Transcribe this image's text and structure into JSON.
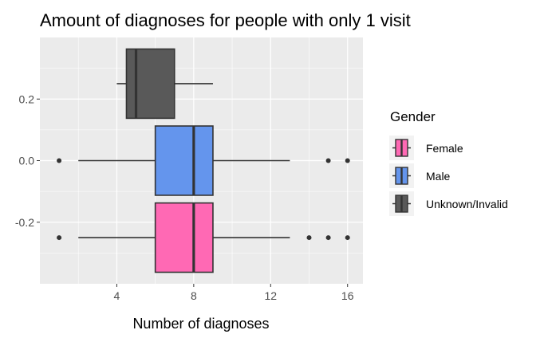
{
  "chart_data": {
    "type": "boxplot",
    "orientation": "horizontal",
    "title": "Amount of diagnoses for people with only 1 visit",
    "xlabel": "Number of diagnoses",
    "ylabel": "",
    "xlim": [
      0,
      16.8
    ],
    "ylim": [
      -0.4,
      0.4
    ],
    "x_ticks": [
      4,
      8,
      12,
      16
    ],
    "x_tick_labels": [
      "4",
      "8",
      "12",
      "16"
    ],
    "y_ticks": [
      0.2,
      0.0,
      -0.2
    ],
    "y_tick_labels": [
      "0.2",
      "0.0",
      "-0.2"
    ],
    "grid": true,
    "legend": {
      "title": "Gender",
      "placement": "right"
    },
    "series": [
      {
        "name": "Female",
        "color": "#ff69b4",
        "y_center": -0.25,
        "box_height": 0.225,
        "whisker_low": 2,
        "q1": 6,
        "median": 8,
        "q3": 9,
        "whisker_high": 13,
        "outliers": [
          1,
          14,
          15,
          16
        ]
      },
      {
        "name": "Male",
        "color": "#6495ed",
        "y_center": 0.0,
        "box_height": 0.225,
        "whisker_low": 2,
        "q1": 6,
        "median": 8,
        "q3": 9,
        "whisker_high": 13,
        "outliers": [
          1,
          15,
          16
        ]
      },
      {
        "name": "Unknown/Invalid",
        "color": "#595959",
        "y_center": 0.25,
        "box_height": 0.225,
        "whisker_low": 4,
        "q1": 4.5,
        "median": 5,
        "q3": 7,
        "whisker_high": 9,
        "outliers": []
      }
    ]
  }
}
